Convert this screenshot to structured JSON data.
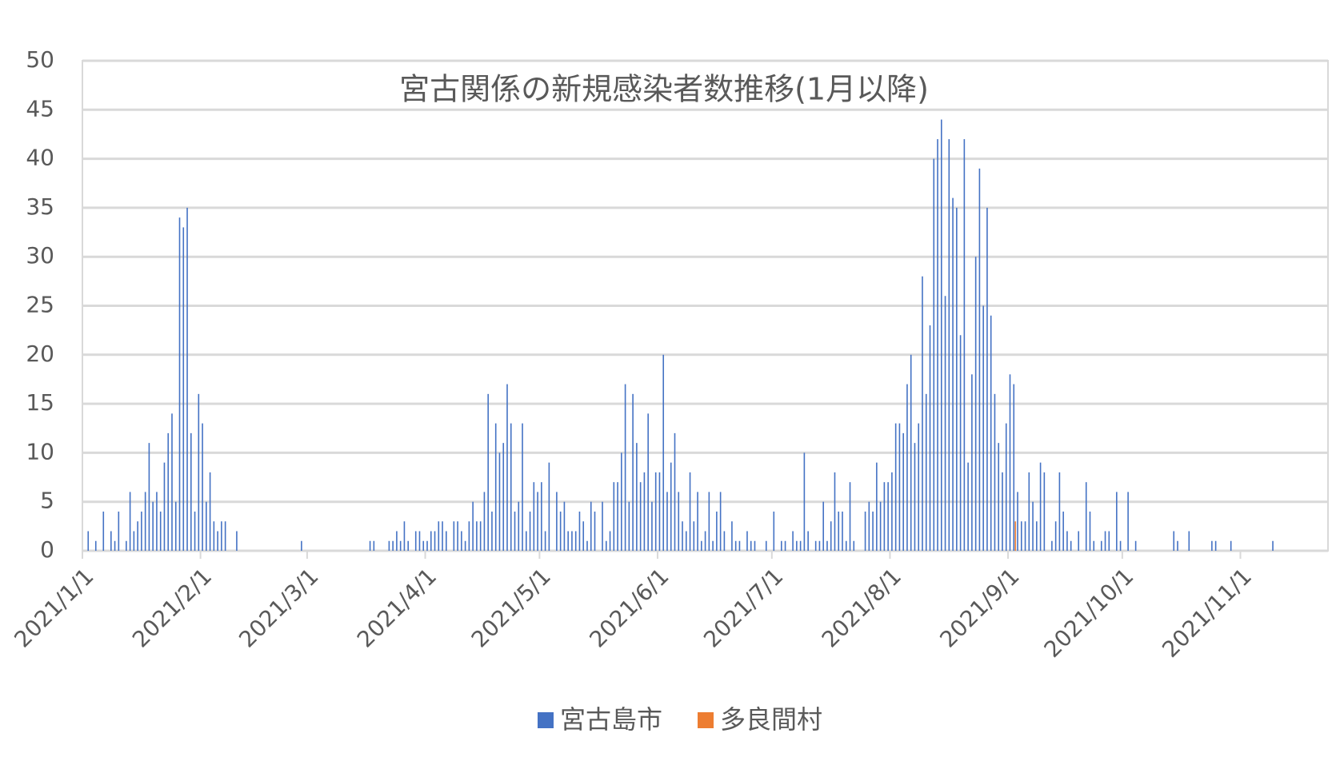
{
  "chart_data": {
    "type": "bar",
    "title": "宮古関係の新規感染者数推移(1月以降)",
    "series": [
      {
        "name": "宮古島市",
        "color": "#4472c4",
        "x": [
          "2021/1/2",
          "2021/1/4",
          "2021/1/6",
          "2021/1/8",
          "2021/1/9",
          "2021/1/10",
          "2021/1/12",
          "2021/1/13",
          "2021/1/14",
          "2021/1/15",
          "2021/1/16",
          "2021/1/17",
          "2021/1/18",
          "2021/1/19",
          "2021/1/20",
          "2021/1/21",
          "2021/1/22",
          "2021/1/23",
          "2021/1/24",
          "2021/1/25",
          "2021/1/26",
          "2021/1/27",
          "2021/1/28",
          "2021/1/29",
          "2021/1/30",
          "2021/1/31",
          "2021/2/1",
          "2021/2/2",
          "2021/2/3",
          "2021/2/4",
          "2021/2/5",
          "2021/2/6",
          "2021/2/7",
          "2021/2/10",
          "2021/2/27",
          "2021/3/17",
          "2021/3/18",
          "2021/3/22",
          "2021/3/23",
          "2021/3/24",
          "2021/3/25",
          "2021/3/26",
          "2021/3/27",
          "2021/3/29",
          "2021/3/30",
          "2021/3/31",
          "2021/4/1",
          "2021/4/2",
          "2021/4/3",
          "2021/4/4",
          "2021/4/5",
          "2021/4/6",
          "2021/4/8",
          "2021/4/9",
          "2021/4/10",
          "2021/4/11",
          "2021/4/12",
          "2021/4/13",
          "2021/4/14",
          "2021/4/15",
          "2021/4/16",
          "2021/4/17",
          "2021/4/18",
          "2021/4/19",
          "2021/4/20",
          "2021/4/21",
          "2021/4/22",
          "2021/4/23",
          "2021/4/24",
          "2021/4/25",
          "2021/4/26",
          "2021/4/27",
          "2021/4/28",
          "2021/4/29",
          "2021/4/30",
          "2021/5/1",
          "2021/5/2",
          "2021/5/3",
          "2021/5/5",
          "2021/5/6",
          "2021/5/7",
          "2021/5/8",
          "2021/5/9",
          "2021/5/10",
          "2021/5/11",
          "2021/5/12",
          "2021/5/13",
          "2021/5/14",
          "2021/5/15",
          "2021/5/17",
          "2021/5/18",
          "2021/5/19",
          "2021/5/20",
          "2021/5/21",
          "2021/5/22",
          "2021/5/23",
          "2021/5/24",
          "2021/5/25",
          "2021/5/26",
          "2021/5/27",
          "2021/5/28",
          "2021/5/29",
          "2021/5/30",
          "2021/5/31",
          "2021/6/1",
          "2021/6/2",
          "2021/6/3",
          "2021/6/4",
          "2021/6/5",
          "2021/6/6",
          "2021/6/7",
          "2021/6/8",
          "2021/6/9",
          "2021/6/10",
          "2021/6/11",
          "2021/6/12",
          "2021/6/13",
          "2021/6/14",
          "2021/6/15",
          "2021/6/16",
          "2021/6/17",
          "2021/6/18",
          "2021/6/20",
          "2021/6/21",
          "2021/6/22",
          "2021/6/24",
          "2021/6/25",
          "2021/6/26",
          "2021/6/29",
          "2021/7/1",
          "2021/7/3",
          "2021/7/4",
          "2021/7/6",
          "2021/7/7",
          "2021/7/8",
          "2021/7/9",
          "2021/7/10",
          "2021/7/12",
          "2021/7/13",
          "2021/7/14",
          "2021/7/15",
          "2021/7/16",
          "2021/7/17",
          "2021/7/18",
          "2021/7/19",
          "2021/7/20",
          "2021/7/21",
          "2021/7/22",
          "2021/7/25",
          "2021/7/26",
          "2021/7/27",
          "2021/7/28",
          "2021/7/29",
          "2021/7/30",
          "2021/7/31",
          "2021/8/1",
          "2021/8/2",
          "2021/8/3",
          "2021/8/4",
          "2021/8/5",
          "2021/8/6",
          "2021/8/7",
          "2021/8/8",
          "2021/8/9",
          "2021/8/10",
          "2021/8/11",
          "2021/8/12",
          "2021/8/13",
          "2021/8/14",
          "2021/8/15",
          "2021/8/16",
          "2021/8/17",
          "2021/8/18",
          "2021/8/19",
          "2021/8/20",
          "2021/8/21",
          "2021/8/22",
          "2021/8/23",
          "2021/8/24",
          "2021/8/25",
          "2021/8/26",
          "2021/8/27",
          "2021/8/28",
          "2021/8/29",
          "2021/8/30",
          "2021/8/31",
          "2021/9/1",
          "2021/9/2",
          "2021/9/3",
          "2021/9/4",
          "2021/9/5",
          "2021/9/6",
          "2021/9/7",
          "2021/9/8",
          "2021/9/9",
          "2021/9/10",
          "2021/9/12",
          "2021/9/13",
          "2021/9/14",
          "2021/9/15",
          "2021/9/16",
          "2021/9/17",
          "2021/9/19",
          "2021/9/21",
          "2021/9/22",
          "2021/9/23",
          "2021/9/25",
          "2021/9/26",
          "2021/9/27",
          "2021/9/29",
          "2021/9/30",
          "2021/10/2",
          "2021/10/4",
          "2021/10/14",
          "2021/10/15",
          "2021/10/18",
          "2021/10/24",
          "2021/10/25",
          "2021/10/29",
          "2021/11/9"
        ],
        "values": [
          2,
          1,
          4,
          2,
          1,
          4,
          1,
          6,
          2,
          3,
          4,
          6,
          11,
          5,
          6,
          4,
          9,
          12,
          14,
          5,
          34,
          33,
          35,
          12,
          4,
          16,
          13,
          5,
          8,
          3,
          2,
          3,
          3,
          2,
          1,
          1,
          1,
          1,
          1,
          2,
          1,
          3,
          1,
          2,
          2,
          1,
          1,
          2,
          2,
          3,
          3,
          2,
          3,
          3,
          2,
          1,
          3,
          5,
          3,
          3,
          6,
          16,
          4,
          13,
          10,
          11,
          17,
          13,
          4,
          5,
          13,
          2,
          4,
          7,
          6,
          7,
          2,
          9,
          6,
          4,
          5,
          2,
          2,
          2,
          4,
          3,
          1,
          5,
          4,
          5,
          1,
          2,
          7,
          7,
          10,
          17,
          5,
          16,
          11,
          7,
          8,
          14,
          5,
          8,
          8,
          20,
          6,
          9,
          12,
          6,
          3,
          2,
          8,
          3,
          6,
          1,
          2,
          6,
          1,
          4,
          6,
          2,
          3,
          1,
          1,
          2,
          1,
          1,
          1,
          4,
          1,
          1,
          2,
          1,
          1,
          10,
          2,
          1,
          1,
          5,
          1,
          3,
          8,
          4,
          4,
          1,
          7,
          1,
          4,
          5,
          4,
          9,
          5,
          7,
          7,
          8,
          13,
          13,
          12,
          17,
          20,
          11,
          13,
          28,
          16,
          23,
          40,
          42,
          44,
          26,
          42,
          36,
          35,
          22,
          42,
          9,
          18,
          30,
          39,
          25,
          35,
          24,
          16,
          11,
          8,
          13,
          18,
          17,
          6,
          3,
          3,
          8,
          5,
          3,
          9,
          8,
          1,
          3,
          8,
          4,
          2,
          1,
          2,
          7,
          4,
          1,
          1,
          2,
          2,
          6,
          1,
          6,
          1,
          2,
          1,
          2,
          1,
          1,
          1,
          1
        ]
      },
      {
        "name": "多良間村",
        "color": "#ed7d31",
        "x": [
          "2021/9/2"
        ],
        "values": [
          3
        ]
      }
    ],
    "xlim": [
      "2021/1/1",
      "2021/11/24"
    ],
    "xticks": [
      "2021/1/1",
      "2021/2/1",
      "2021/3/1",
      "2021/4/1",
      "2021/5/1",
      "2021/6/1",
      "2021/7/1",
      "2021/8/1",
      "2021/9/1",
      "2021/10/1",
      "2021/11/1"
    ],
    "ylim": [
      0,
      50
    ],
    "yticks": [
      0,
      5,
      10,
      15,
      20,
      25,
      30,
      35,
      40,
      45,
      50
    ],
    "grid": true,
    "legend": "bottom"
  }
}
